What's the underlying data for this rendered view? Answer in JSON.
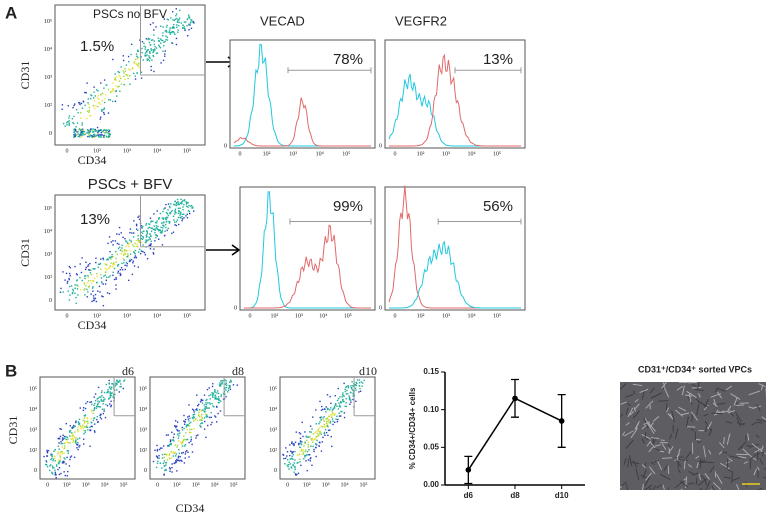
{
  "panel_a": {
    "label": "A",
    "axis_ticks": [
      "0",
      "10²",
      "10³",
      "10⁴",
      "10⁵"
    ],
    "rows": [
      {
        "title": "PSCs no BFV",
        "gate_percent": "1.5%",
        "y_axis": "CD31",
        "x_axis": "CD34",
        "histograms": [
          {
            "title": "VECAD",
            "percent": "78%"
          },
          {
            "title": "VEGFR2",
            "percent": "13%"
          }
        ]
      },
      {
        "title": "PSCs + BFV",
        "gate_percent": "13%",
        "y_axis": "CD31",
        "x_axis": "CD34",
        "histograms": [
          {
            "percent": "99%"
          },
          {
            "percent": "56%"
          }
        ]
      }
    ]
  },
  "panel_b": {
    "label": "B",
    "y_axis": "CD31",
    "x_axis": "CD34",
    "days": [
      "d6",
      "d8",
      "d10"
    ],
    "image_caption": "CD31⁺/CD34⁺ sorted VPCs"
  },
  "chart_data": {
    "type": "line",
    "ylabel": "% CD34+/CD34+ cells",
    "categories": [
      "d6",
      "d8",
      "d10"
    ],
    "values": [
      0.02,
      0.115,
      0.085
    ],
    "errors": [
      0.018,
      0.025,
      0.035
    ],
    "color": "#000000",
    "ylim": [
      0,
      0.15
    ],
    "yticks": [
      {
        "value": 0,
        "label": "0.00"
      },
      {
        "value": 0.05,
        "label": "0.05"
      },
      {
        "value": 0.1,
        "label": "0.10"
      },
      {
        "value": 0.15,
        "label": "0.15"
      }
    ]
  }
}
